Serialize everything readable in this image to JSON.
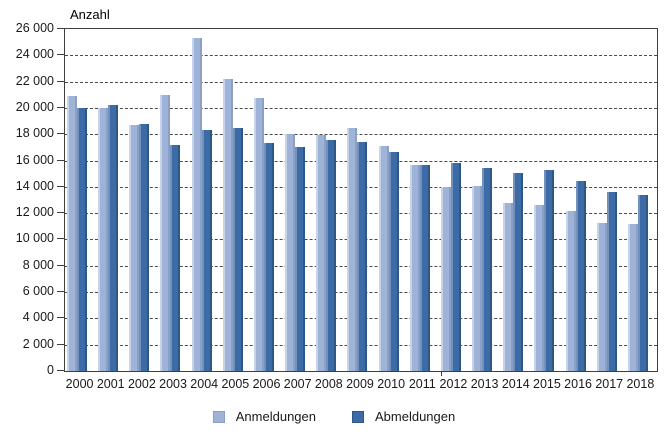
{
  "chart_data": {
    "type": "bar",
    "title": "Anzahl",
    "categories": [
      "2000",
      "2001",
      "2002",
      "2003",
      "2004",
      "2005",
      "2006",
      "2007",
      "2008",
      "2009",
      "2010",
      "2011",
      "2012",
      "2013",
      "2014",
      "2015",
      "2016",
      "2017",
      "2018"
    ],
    "series": [
      {
        "name": "Anmeldungen",
        "color": "#9fb3d6",
        "values": [
          20900,
          20000,
          18700,
          21000,
          25300,
          22200,
          20750,
          18000,
          17950,
          18450,
          17100,
          15650,
          14000,
          14050,
          12800,
          12600,
          12200,
          11250,
          11200
        ]
      },
      {
        "name": "Abmeldungen",
        "color": "#3c6ba5",
        "values": [
          20000,
          20250,
          18750,
          17200,
          18300,
          18500,
          17300,
          17000,
          17600,
          17400,
          16650,
          15700,
          15850,
          15400,
          15050,
          15300,
          14450,
          13600,
          13350
        ]
      }
    ],
    "ylim": [
      0,
      26000
    ],
    "ytick_step": 2000,
    "ytick_labels": [
      "0",
      "2 000",
      "4 000",
      "6 000",
      "8 000",
      "10 000",
      "12 000",
      "14 000",
      "16 000",
      "18 000",
      "20 000",
      "22 000",
      "24 000",
      "26 000"
    ],
    "grid": "horizontal-dashed",
    "legend_position": "bottom"
  },
  "colors": {
    "light": "#9fb3d6",
    "light_edge_left": "#c7d3e8",
    "light_edge_right": "#8ba0c9",
    "dark": "#3c6ba5",
    "dark_edge_left": "#7291bd",
    "dark_edge_right": "#2d5886",
    "grid": "#4a4a4a",
    "axis": "#3f3f3f"
  }
}
